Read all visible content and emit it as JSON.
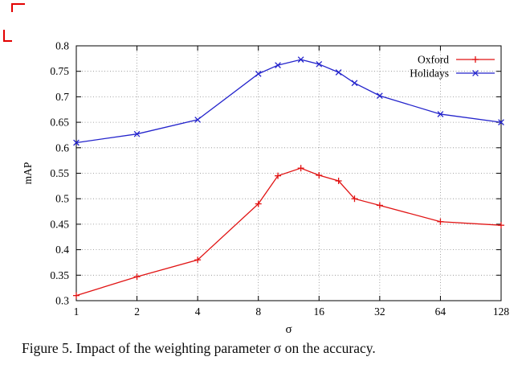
{
  "page": {
    "caption": "Figure 5. Impact of the weighting parameter σ on the accuracy."
  },
  "chart_data": {
    "type": "line",
    "title": "",
    "xlabel": "σ",
    "ylabel": "mAP",
    "x_scale": "log2",
    "xlim": [
      1,
      128
    ],
    "ylim": [
      0.3,
      0.8
    ],
    "x_ticks": [
      1,
      2,
      4,
      8,
      16,
      32,
      64,
      128
    ],
    "y_ticks": [
      0.3,
      0.35,
      0.4,
      0.45,
      0.5,
      0.55,
      0.6,
      0.65,
      0.7,
      0.75,
      0.8
    ],
    "grid": true,
    "legend_position": "top-right",
    "x": [
      1,
      2,
      4,
      8,
      10,
      13,
      16,
      20,
      24,
      32,
      64,
      128
    ],
    "series": [
      {
        "name": "Oxford",
        "color": "#e11313",
        "marker": "plus",
        "values": [
          0.31,
          0.347,
          0.38,
          0.49,
          0.545,
          0.56,
          0.546,
          0.535,
          0.5,
          0.487,
          0.455,
          0.448
        ]
      },
      {
        "name": "Holidays",
        "color": "#2424cc",
        "marker": "cross",
        "values": [
          0.61,
          0.627,
          0.655,
          0.745,
          0.762,
          0.773,
          0.764,
          0.748,
          0.727,
          0.702,
          0.666,
          0.65
        ]
      }
    ]
  }
}
